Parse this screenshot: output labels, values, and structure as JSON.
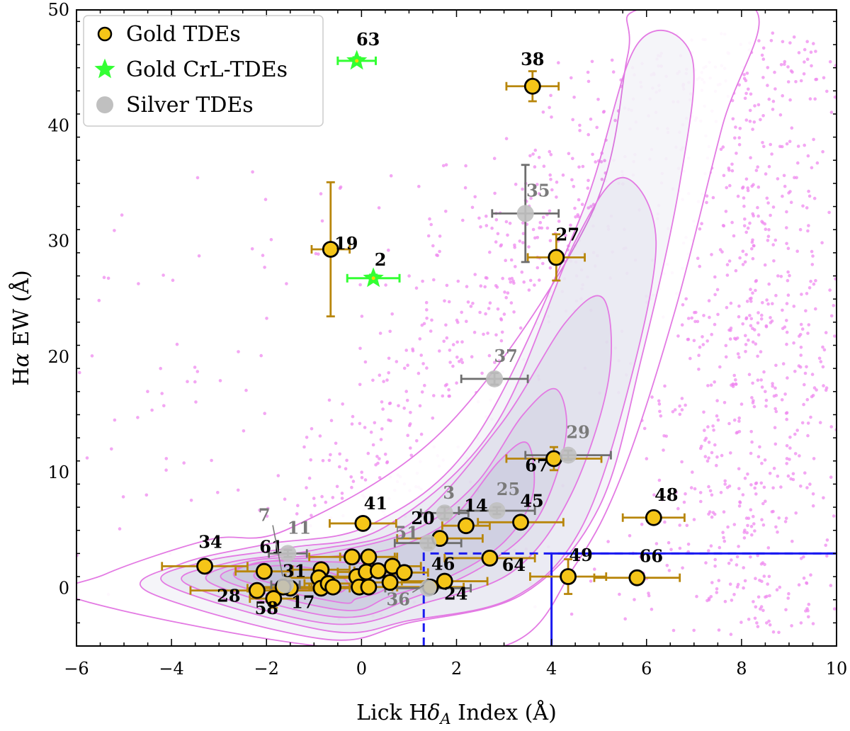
{
  "colors": {
    "gold_fill": "#f5c518",
    "gold_err": "#b8860b",
    "crl_fill": "#33ff33",
    "crl_center": "#ffd700",
    "silver_fill": "#c0c0c0",
    "silver_err": "#6e6e6e",
    "silver_label": "#7a7a7a",
    "contour_line": "#e37ae3",
    "contour_fill": "#3c3c8c",
    "scatter": "#ee82ee",
    "region": "#1a1af0"
  },
  "chart_data": {
    "type": "scatter",
    "xlabel": "Lick Hδ_A Index (Å)",
    "ylabel": "Hα EW (Å)",
    "xlim": [
      -6,
      10
    ],
    "ylim": [
      -5,
      50
    ],
    "xticks": [
      -6,
      -4,
      -2,
      0,
      2,
      4,
      6,
      8,
      10
    ],
    "yticks": [
      0,
      10,
      20,
      30,
      40,
      50
    ],
    "legend": {
      "placement": "top-left",
      "entries": [
        "Gold TDEs",
        "Gold CrL-TDEs",
        "Silver TDEs"
      ]
    },
    "regions": [
      {
        "style": "dashed",
        "x": [
          1.31,
          10
        ],
        "y": [
          -5,
          3
        ]
      },
      {
        "style": "solid",
        "x": [
          4,
          10
        ],
        "y": [
          -5,
          3
        ]
      }
    ],
    "series": [
      {
        "name": "Gold TDEs",
        "points": [
          {
            "id": "38",
            "x": 3.6,
            "y": 43.4,
            "xerr": 0.55,
            "yerr": 1.3
          },
          {
            "id": "19",
            "x": -0.65,
            "y": 29.3,
            "xerr": 0.4,
            "yerr": 5.8
          },
          {
            "id": "27",
            "x": 4.1,
            "y": 28.6,
            "xerr": 0.6,
            "yerr": 2.0
          },
          {
            "id": "67",
            "x": 4.05,
            "y": 11.2,
            "xerr": 1.0,
            "yerr": 1.0
          },
          {
            "id": "48",
            "x": 6.15,
            "y": 6.1,
            "xerr": 0.65,
            "yerr": 0.3
          },
          {
            "id": "41",
            "x": 0.03,
            "y": 5.6,
            "xerr": 0.7,
            "yerr": 0.4
          },
          {
            "id": "45",
            "x": 3.35,
            "y": 5.7,
            "xerr": 0.9,
            "yerr": 0.4
          },
          {
            "id": "14",
            "x": 2.2,
            "y": 5.4,
            "xerr": 0.5,
            "yerr": 0.3
          },
          {
            "id": "20",
            "x": 1.65,
            "y": 4.3,
            "xerr": 0.9,
            "yerr": 0.5
          },
          {
            "id": "64",
            "x": 2.7,
            "y": 2.6,
            "xerr": 0.95,
            "yerr": 0.3
          },
          {
            "id": "49",
            "x": 4.35,
            "y": 1.0,
            "xerr": 0.8,
            "yerr": 1.5
          },
          {
            "id": "66",
            "x": 5.8,
            "y": 0.9,
            "xerr": 0.9,
            "yerr": 0.3
          },
          {
            "id": "34",
            "x": -3.3,
            "y": 1.9,
            "xerr": 0.9,
            "yerr": 0.3
          },
          {
            "id": "61",
            "x": -2.05,
            "y": 1.45,
            "xerr": 0.6,
            "yerr": 0.3
          },
          {
            "id": "28",
            "x": -2.2,
            "y": -0.2,
            "xerr": 1.4,
            "yerr": 0.3
          },
          {
            "id": "58",
            "x": -1.85,
            "y": -0.9,
            "xerr": 0.5,
            "yerr": 0.8
          },
          {
            "id": "17",
            "x": -1.5,
            "y": 0.0,
            "xerr": 0.9,
            "yerr": 0.4
          },
          {
            "id": "31",
            "x": -1.65,
            "y": 0.1,
            "xerr": 0.6,
            "yerr": 0.3
          },
          {
            "id": "24",
            "x": 1.75,
            "y": 0.6,
            "xerr": 0.9,
            "yerr": 0.3
          },
          {
            "id": "46",
            "x": 1.45,
            "y": 0.1,
            "xerr": 0.7,
            "yerr": 0.3
          },
          {
            "x": -0.85,
            "y": 1.6,
            "xerr": 0.6,
            "yerr": 0.3
          },
          {
            "x": -0.9,
            "y": 0.9,
            "xerr": 0.7,
            "yerr": 0.3
          },
          {
            "x": -0.85,
            "y": 0.0,
            "xerr": 0.6,
            "yerr": 0.3
          },
          {
            "x": -0.7,
            "y": 0.4,
            "xerr": 0.5,
            "yerr": 0.3
          },
          {
            "x": -0.6,
            "y": 0.1,
            "xerr": 0.5,
            "yerr": 0.3
          },
          {
            "x": -0.2,
            "y": 2.7,
            "xerr": 0.9,
            "yerr": 0.3
          },
          {
            "x": -0.1,
            "y": 1.0,
            "xerr": 0.8,
            "yerr": 0.3
          },
          {
            "x": -0.05,
            "y": 0.1,
            "xerr": 0.7,
            "yerr": 0.3
          },
          {
            "x": 0.1,
            "y": 1.4,
            "xerr": 0.6,
            "yerr": 0.3
          },
          {
            "x": 0.15,
            "y": 2.7,
            "xerr": 0.6,
            "yerr": 0.3
          },
          {
            "x": 0.15,
            "y": 0.1,
            "xerr": 0.6,
            "yerr": 0.3
          },
          {
            "x": 0.35,
            "y": 1.5,
            "xerr": 0.5,
            "yerr": 0.3
          },
          {
            "x": 0.6,
            "y": 0.5,
            "xerr": 0.8,
            "yerr": 0.3
          },
          {
            "x": 0.65,
            "y": 1.9,
            "xerr": 0.6,
            "yerr": 0.3
          },
          {
            "x": 0.9,
            "y": 1.35,
            "xerr": 0.5,
            "yerr": 0.3
          }
        ]
      },
      {
        "name": "Gold CrL-TDEs",
        "points": [
          {
            "id": "63",
            "x": -0.1,
            "y": 45.6,
            "xerr": 0.4,
            "yerr": 0.3
          },
          {
            "id": "2",
            "x": 0.25,
            "y": 26.8,
            "xerr": 0.55,
            "yerr": 0.3
          }
        ]
      },
      {
        "name": "Silver TDEs",
        "points": [
          {
            "id": "35",
            "x": 3.45,
            "y": 32.4,
            "xerr": 0.7,
            "yerr": 4.2
          },
          {
            "id": "37",
            "x": 2.8,
            "y": 18.1,
            "xerr": 0.7,
            "yerr": 0.5
          },
          {
            "id": "29",
            "x": 4.35,
            "y": 11.5,
            "xerr": 0.9,
            "yerr": 0.4
          },
          {
            "id": "25",
            "x": 2.85,
            "y": 6.7,
            "xerr": 0.8,
            "yerr": 0.3
          },
          {
            "id": "3",
            "x": 1.75,
            "y": 6.5,
            "xerr": 0.5,
            "yerr": 0.5
          },
          {
            "id": "51",
            "x": 1.4,
            "y": 3.9,
            "xerr": 0.7,
            "yerr": 0.4
          },
          {
            "id": "11",
            "x": -1.55,
            "y": 3.0,
            "xerr": 0.4,
            "yerr": 0.3
          },
          {
            "id": "7",
            "x": -1.6,
            "y": 0.3,
            "xerr": 0.3,
            "yerr": 0.3
          },
          {
            "id": "36",
            "x": 1.4,
            "y": 0.0,
            "xerr": 0.9,
            "yerr": 0.3
          }
        ]
      }
    ]
  }
}
